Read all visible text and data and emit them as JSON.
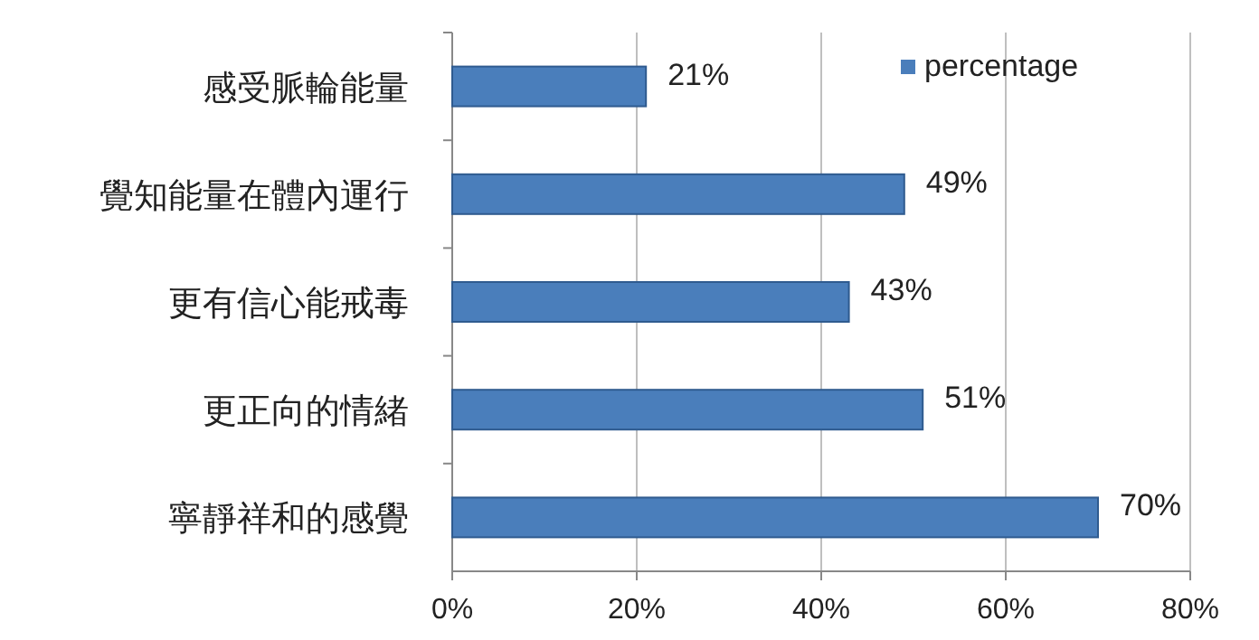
{
  "chart_data": {
    "type": "bar",
    "orientation": "horizontal",
    "categories": [
      "感受脈輪能量",
      "覺知能量在體內運行",
      "更有信心能戒毒",
      "更正向的情緒",
      "寧靜祥和的感覺"
    ],
    "series": [
      {
        "name": "percentage",
        "color": "#4a7ebb",
        "values": [
          21,
          49,
          43,
          51,
          70
        ],
        "value_labels": [
          "21%",
          "49%",
          "43%",
          "51%",
          "70%"
        ]
      }
    ],
    "xlim": [
      0,
      80
    ],
    "xticks": [
      {
        "value": 0,
        "label": "0%"
      },
      {
        "value": 20,
        "label": "20%"
      },
      {
        "value": 40,
        "label": "40%"
      },
      {
        "value": 60,
        "label": "60%"
      },
      {
        "value": 80,
        "label": "80%"
      }
    ],
    "grid": "x",
    "legend": "top right"
  }
}
